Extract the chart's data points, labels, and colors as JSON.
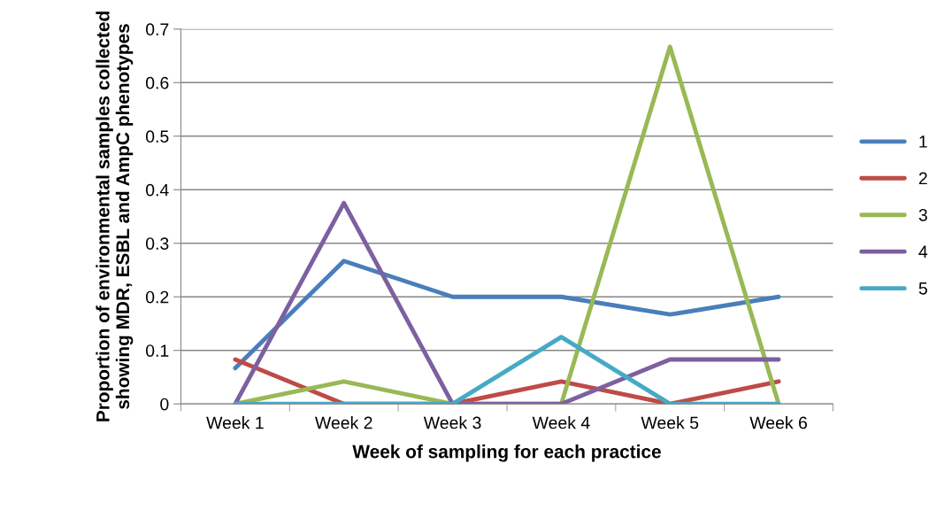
{
  "chart_data": {
    "type": "line",
    "xlabel": "Week of sampling for each practice",
    "ylabel": "Proportion of environmental samples collected showing MDR, ESBL and AmpC phenotypes",
    "categories": [
      "Week 1",
      "Week 2",
      "Week 3",
      "Week 4",
      "Week 5",
      "Week 6"
    ],
    "series": [
      {
        "name": "1",
        "color": "#4a7ebb",
        "values": [
          0.067,
          0.267,
          0.2,
          0.2,
          0.167,
          0.2
        ]
      },
      {
        "name": "2",
        "color": "#be4b48",
        "values": [
          0.083,
          0,
          0,
          0.042,
          0,
          0.042
        ]
      },
      {
        "name": "3",
        "color": "#98b954",
        "values": [
          0,
          0.042,
          0,
          0,
          0.667,
          0
        ]
      },
      {
        "name": "4",
        "color": "#7d60a0",
        "values": [
          0,
          0.375,
          0,
          0,
          0.083,
          0.083
        ]
      },
      {
        "name": "5",
        "color": "#46aac5",
        "values": [
          0,
          0,
          0,
          0.125,
          0,
          0
        ]
      }
    ],
    "ylim": [
      0,
      0.7
    ],
    "yticks": [
      0,
      0.1,
      0.2,
      0.3,
      0.4,
      0.5,
      0.6,
      0.7
    ],
    "grid": "y",
    "legend": "right",
    "marker": "none",
    "line_style": "solid"
  }
}
